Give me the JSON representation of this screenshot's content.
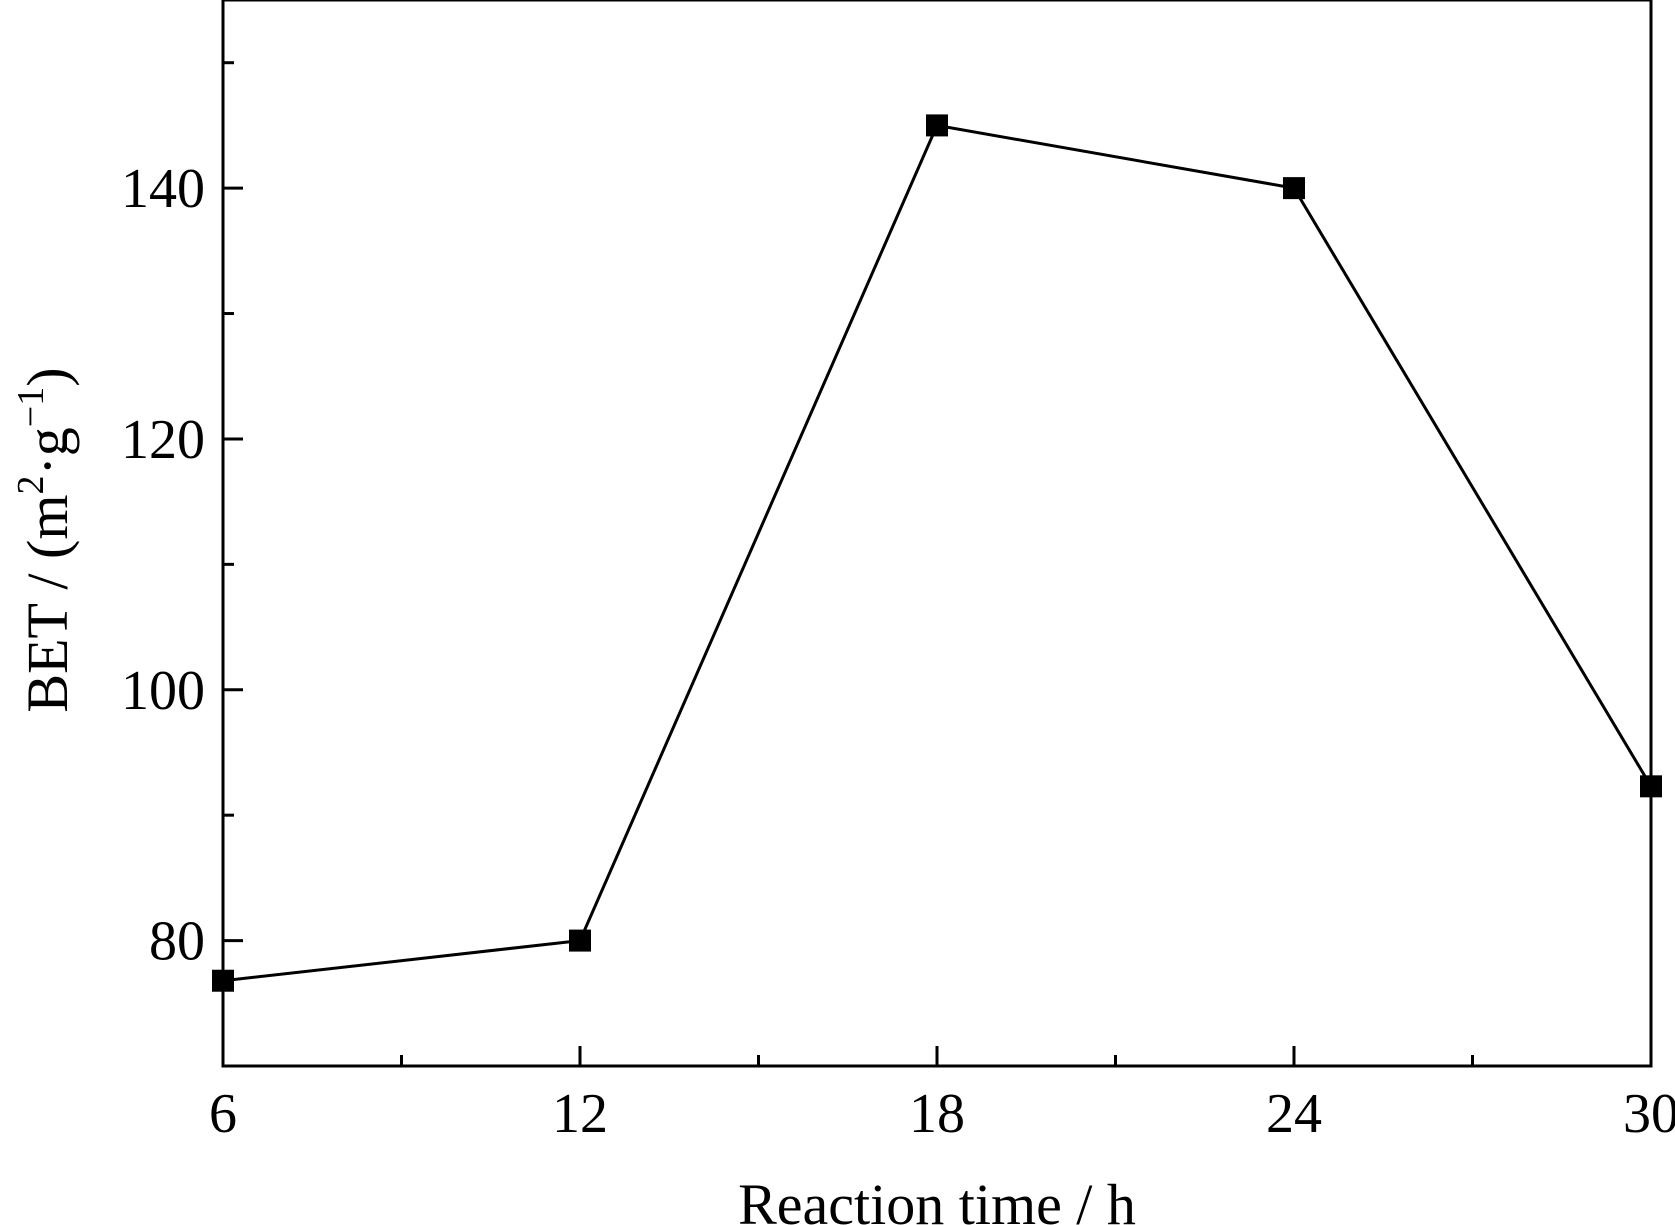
{
  "chart_data": {
    "type": "line",
    "title": "",
    "xlabel": "Reaction time / h",
    "ylabel": {
      "prefix": "BET / (m",
      "sup1": "2",
      "mid": "·g",
      "sup2": "−1",
      "suffix": ")"
    },
    "xlim": [
      6,
      30
    ],
    "ylim": [
      70,
      155
    ],
    "x_ticks": [
      6,
      12,
      18,
      24,
      30
    ],
    "x_tick_labels": [
      "6",
      "12",
      "18",
      "24",
      "30"
    ],
    "x_minor_ticks": [
      9,
      15,
      21,
      27
    ],
    "y_ticks": [
      80,
      100,
      120,
      140
    ],
    "y_tick_labels": [
      "80",
      "100",
      "120",
      "140"
    ],
    "y_minor_ticks": [
      90,
      110,
      130,
      150
    ],
    "grid": false,
    "series": [
      {
        "marker": "square",
        "color": "#000000",
        "x": [
          6,
          12,
          18,
          24,
          30
        ],
        "y": [
          76.8,
          80,
          145,
          140,
          92.3
        ]
      }
    ]
  }
}
